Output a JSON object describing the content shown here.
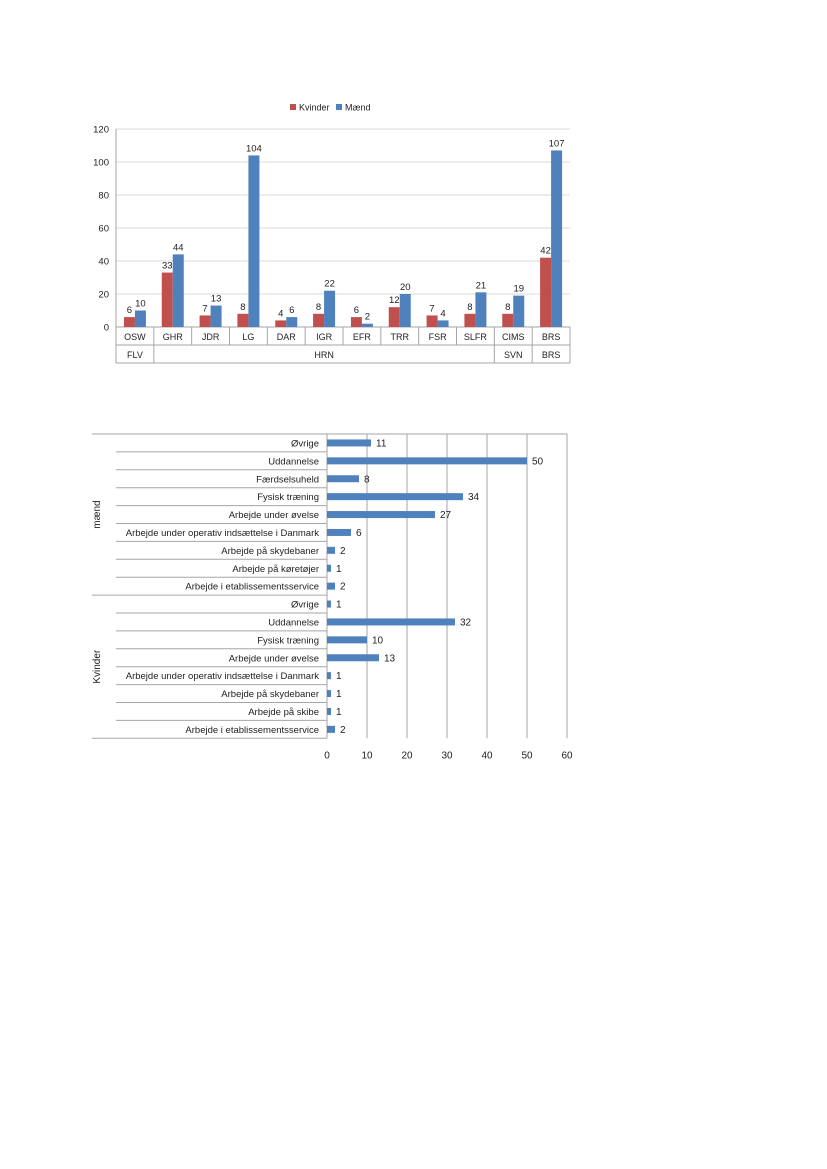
{
  "colors": {
    "kvinder": "#c0504d",
    "maend": "#4f81bd",
    "grid": "#d9d9d9",
    "axis": "#a6a6a6"
  },
  "chart_data": [
    {
      "type": "bar",
      "orientation": "vertical",
      "legend": "top-center",
      "grid": true,
      "ylim": [
        0,
        120
      ],
      "yticks": [
        0,
        20,
        40,
        60,
        80,
        100,
        120
      ],
      "categories": [
        "OSW",
        "GHR",
        "JDR",
        "LG",
        "DAR",
        "IGR",
        "EFR",
        "TRR",
        "FSR",
        "SLFR",
        "CIMS",
        "BRS"
      ],
      "category_groups": [
        {
          "label": "FLV",
          "span": 1
        },
        {
          "label": "HRN",
          "span": 9
        },
        {
          "label": "SVN",
          "span": 1
        },
        {
          "label": "BRS",
          "span": 1
        }
      ],
      "series": [
        {
          "name": "Kvinder",
          "values": [
            6,
            33,
            7,
            8,
            4,
            8,
            6,
            12,
            7,
            8,
            8,
            42
          ]
        },
        {
          "name": "Mænd",
          "values": [
            10,
            44,
            13,
            104,
            6,
            22,
            2,
            20,
            4,
            21,
            19,
            107
          ]
        }
      ]
    },
    {
      "type": "bar",
      "orientation": "horizontal",
      "grid": true,
      "xlim": [
        0,
        60
      ],
      "xticks": [
        0,
        10,
        20,
        30,
        40,
        50,
        60
      ],
      "groups": [
        {
          "label": "mænd",
          "categories": [
            "Øvrige",
            "Uddannelse",
            "Færdselsuheld",
            "Fysisk træning",
            "Arbejde under øvelse",
            "Arbejde under operativ indsættelse i Danmark",
            "Arbejde på skydebaner",
            "Arbejde på køretøjer",
            "Arbejde i etablissementsservice"
          ],
          "values": [
            11,
            50,
            8,
            34,
            27,
            6,
            2,
            1,
            2
          ]
        },
        {
          "label": "Kvinder",
          "categories": [
            "Øvrige",
            "Uddannelse",
            "Fysisk træning",
            "Arbejde under øvelse",
            "Arbejde under operativ indsættelse i Danmark",
            "Arbejde på skydebaner",
            "Arbejde på skibe",
            "Arbejde i etablissementsservice"
          ],
          "values": [
            1,
            32,
            10,
            13,
            1,
            1,
            1,
            2
          ]
        }
      ]
    }
  ]
}
